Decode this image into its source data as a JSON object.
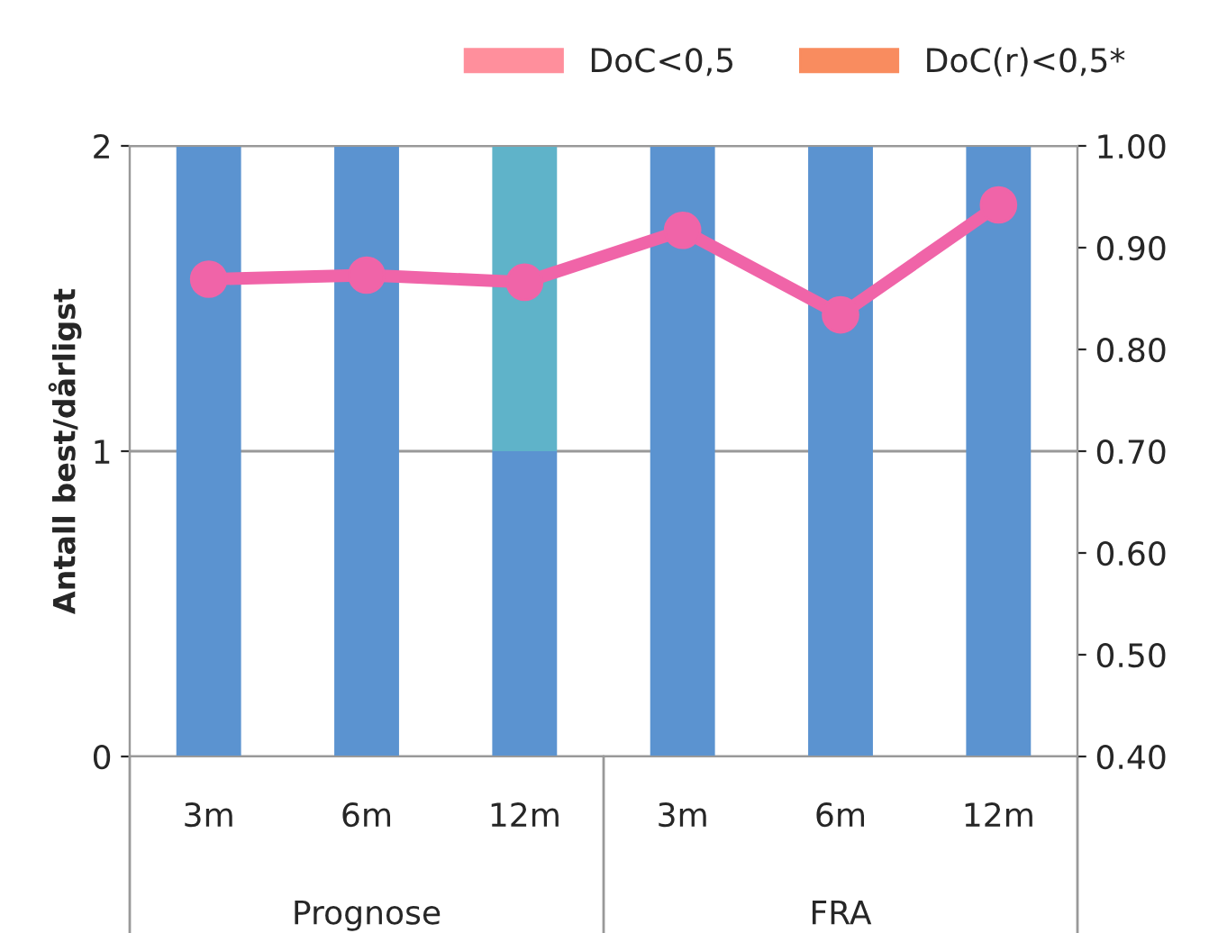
{
  "chart_data": {
    "type": "bar",
    "stacked": true,
    "ylabel": "Antall best/dårligst",
    "categories": [
      "3m",
      "6m",
      "12m",
      "3m",
      "6m",
      "12m"
    ],
    "series": [
      {
        "color": "#5b93d0",
        "values": [
          2,
          2,
          1,
          2,
          2,
          2
        ]
      },
      {
        "color": "#5fb3c9",
        "values": [
          0,
          0,
          1,
          0,
          0,
          0
        ]
      },
      {
        "name": "DoC<0,5",
        "color": "#ff8f9c",
        "values": [
          null,
          null,
          null,
          null,
          null,
          null
        ]
      },
      {
        "name": "DoC(r)<0,5*",
        "color": "#f98c5f",
        "values": [
          null,
          null,
          null,
          null,
          null,
          null
        ]
      },
      {
        "type": "line",
        "axis": "y2",
        "color": "#f064a8",
        "marker": "circle",
        "values": [
          0.869,
          0.873,
          0.866,
          0.917,
          0.834,
          0.942
        ]
      }
    ],
    "ylim": [
      0,
      2
    ],
    "yticks": [
      0,
      1,
      2
    ],
    "y2lim": [
      0.4,
      1.0
    ],
    "y2ticks": [
      {
        "value": 0.4,
        "label": "0.40"
      },
      {
        "value": 0.5,
        "label": "0.50"
      },
      {
        "value": 0.6,
        "label": "0.60"
      },
      {
        "value": 0.7,
        "label": "0.70"
      },
      {
        "value": 0.8,
        "label": "0.80"
      },
      {
        "value": 0.9,
        "label": "0.90"
      },
      {
        "value": 1.0,
        "label": "1.00"
      }
    ],
    "grid": "y",
    "legend": "top right",
    "annotations": [
      "Prognose",
      "FRA"
    ]
  }
}
